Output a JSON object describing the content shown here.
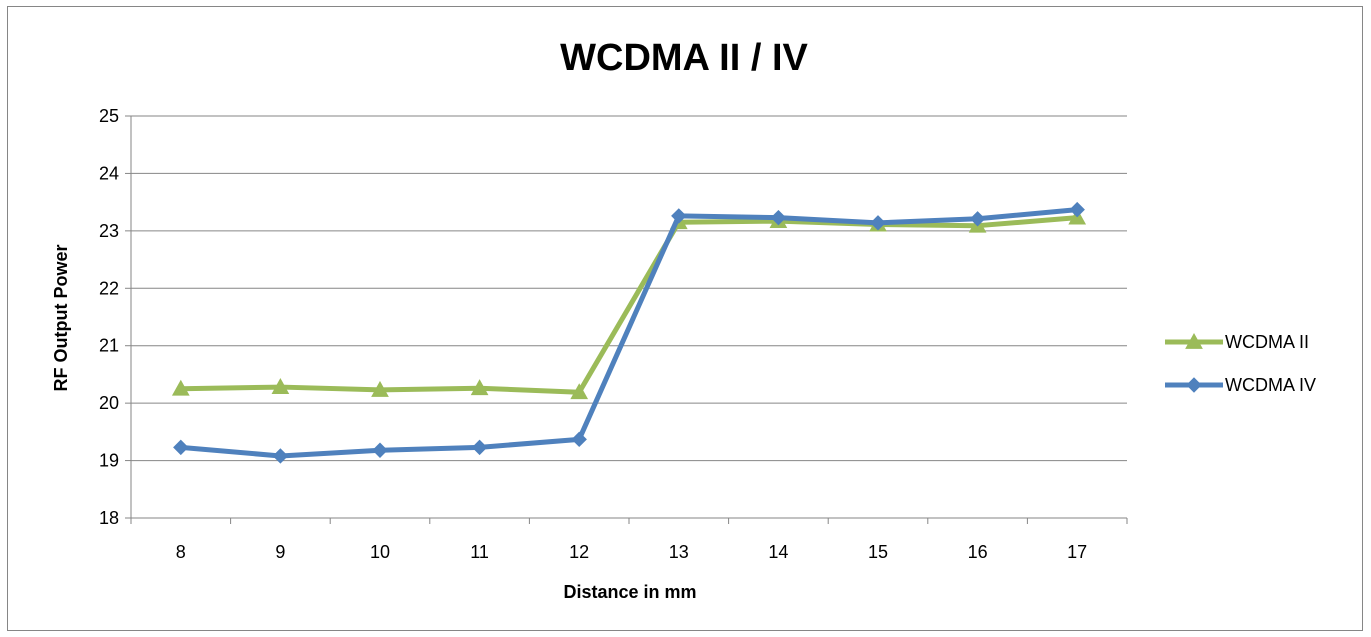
{
  "chart_data": {
    "type": "line",
    "title": "WCDMA II / IV",
    "xlabel": "Distance in mm",
    "ylabel": "RF Output Power",
    "categories": [
      "8",
      "9",
      "10",
      "11",
      "12",
      "13",
      "14",
      "15",
      "16",
      "17"
    ],
    "ylim": [
      18,
      25
    ],
    "yticks": [
      18,
      19,
      20,
      21,
      22,
      23,
      24,
      25
    ],
    "grid": "horizontal",
    "legend_position": "right",
    "series": [
      {
        "name": "WCDMA II",
        "color": "#9BBB59",
        "marker": "triangle",
        "values": [
          20.25,
          20.28,
          20.23,
          20.26,
          20.19,
          23.15,
          23.17,
          23.11,
          23.09,
          23.23
        ]
      },
      {
        "name": "WCDMA IV",
        "color": "#4F81BD",
        "marker": "diamond",
        "values": [
          19.23,
          19.08,
          19.18,
          19.23,
          19.37,
          23.26,
          23.23,
          23.14,
          23.21,
          23.37
        ]
      }
    ]
  }
}
